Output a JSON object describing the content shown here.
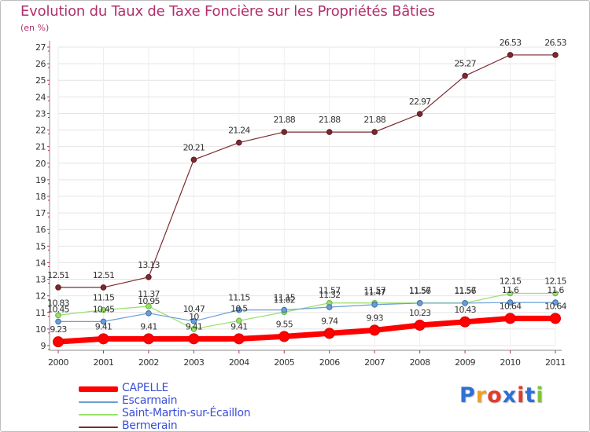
{
  "title": "Evolution du Taux de Taxe Foncière sur les Propriétés Bâties",
  "unit_label": "(en %)",
  "brand": {
    "letters": [
      "P",
      "r",
      "o",
      "x",
      "i",
      "t",
      "i"
    ],
    "colors": [
      "#2f6fd6",
      "#f0a020",
      "#e23a2c",
      "#2f6fd6",
      "#e23a2c",
      "#2f6fd6",
      "#7fc33a"
    ]
  },
  "chart_data": {
    "type": "line",
    "title": "Evolution du Taux de Taxe Foncière sur les Propriétés Bâties",
    "ylabel": "(en %)",
    "xlabel": "",
    "x": [
      "2000",
      "2001",
      "2002",
      "2003",
      "2004",
      "2005",
      "2006",
      "2007",
      "2008",
      "2009",
      "2010",
      "2011"
    ],
    "ylim": [
      9,
      27
    ],
    "yticks": [
      "9",
      "10",
      "11",
      "12",
      "13",
      "14",
      "15",
      "16",
      "17",
      "18",
      "19",
      "20",
      "21",
      "22",
      "23",
      "24",
      "25",
      "26",
      "27"
    ],
    "series": [
      {
        "name": "CAPELLE",
        "color": "#ff0000",
        "values": [
          9.23,
          9.41,
          9.41,
          9.41,
          9.41,
          9.55,
          9.74,
          9.93,
          10.23,
          10.43,
          10.64,
          10.64
        ],
        "labels": [
          "9.23",
          "9.41",
          "9.41",
          "9.41",
          "9.41",
          "9.55",
          "9.74",
          "9.93",
          "10.23",
          "10.43",
          "10.64",
          "10.64"
        ]
      },
      {
        "name": "Escarmain",
        "color": "#6a9ed6",
        "values": [
          10.45,
          10.45,
          10.95,
          10.47,
          11.15,
          11.15,
          11.32,
          11.47,
          11.56,
          11.56,
          11.6,
          11.6
        ],
        "labels": [
          "10.45",
          "10.45",
          "10.95",
          "10.47",
          "11.15",
          "11.15",
          "11.32",
          "11.47",
          "11.56",
          "11.56",
          "11.6",
          "11.6"
        ]
      },
      {
        "name": "Saint-Martin-sur-Écaillon",
        "color": "#98e06a",
        "values": [
          10.83,
          11.15,
          11.37,
          10,
          10.5,
          11.02,
          11.57,
          11.57,
          11.57,
          11.57,
          12.15,
          12.15
        ],
        "labels": [
          "10.83",
          "11.15",
          "11.37",
          "10",
          "10.5",
          "11.02",
          "11.57",
          "11.57",
          "11.57",
          "11.57",
          "12.15",
          "12.15"
        ]
      },
      {
        "name": "Bermerain",
        "color": "#7a2a30",
        "values": [
          12.51,
          12.51,
          13.13,
          20.21,
          21.24,
          21.88,
          21.88,
          21.88,
          22.97,
          25.27,
          26.53,
          26.53
        ],
        "labels": [
          "12.51",
          "12.51",
          "13.13",
          "20.21",
          "21.24",
          "21.88",
          "21.88",
          "21.88",
          "22.97",
          "25.27",
          "26.53",
          "26.53"
        ]
      }
    ],
    "legend": "bottom-left"
  }
}
